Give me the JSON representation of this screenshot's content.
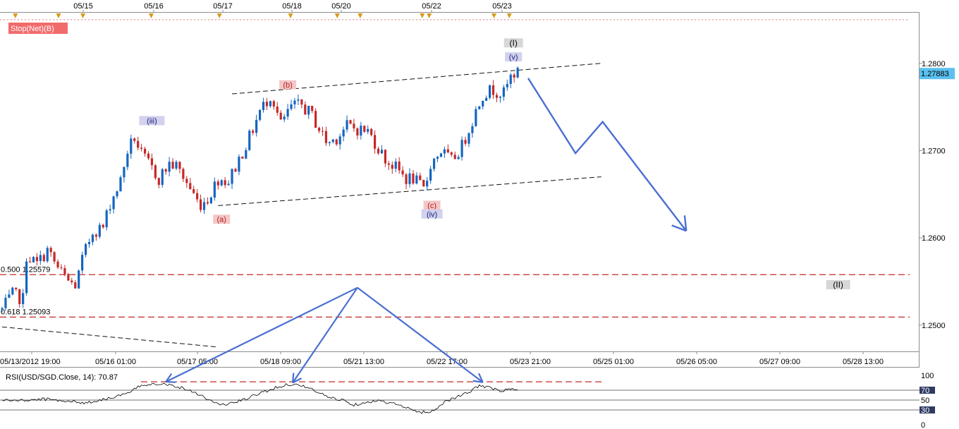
{
  "stop_badge": "Stop(Net)(B)",
  "colors": {
    "up": "#1565c0",
    "down": "#c62828",
    "wave_arrow": "#4a6fd1",
    "fib_line": "#c62828",
    "price_tag": "#5bc0f0",
    "event_marker": "#d99a1c"
  },
  "chart_data": [
    {
      "type": "candlestick",
      "symbol_label": "",
      "top_date_labels": [
        "05/15",
        "05/16",
        "05/17",
        "05/18",
        "05/20",
        "05/22",
        "05/23"
      ],
      "x_axis_labels": [
        "05/13/2012 19:00",
        "05/16 01:00",
        "05/17 05:00",
        "05/18 09:00",
        "05/21 13:00",
        "05/22 17:00",
        "05/23 21:00",
        "05/25 01:00",
        "05/26 05:00",
        "05/27 09:00",
        "05/28 13:00"
      ],
      "y_ticks": [
        1.25,
        1.26,
        1.27,
        1.28
      ],
      "y_tick_labels": [
        "1.2500",
        "1.2600",
        "1.2700",
        "1.2800"
      ],
      "ylim": [
        1.247,
        1.2858
      ],
      "last_price": "1.27883",
      "grid": false,
      "price_path": [
        [
          0,
          1.2518
        ],
        [
          1.5,
          1.2535
        ],
        [
          3,
          1.253
        ],
        [
          3.5,
          1.258
        ],
        [
          5,
          1.257
        ],
        [
          6.5,
          1.2586
        ],
        [
          8,
          1.2565
        ],
        [
          9.5,
          1.255
        ],
        [
          10.6,
          1.2545
        ],
        [
          11.5,
          1.2575
        ],
        [
          13,
          1.2608
        ],
        [
          14.5,
          1.2612
        ],
        [
          15.5,
          1.264
        ],
        [
          17,
          1.2665
        ],
        [
          18,
          1.27
        ],
        [
          19,
          1.2715
        ],
        [
          20,
          1.2695
        ],
        [
          21,
          1.2685
        ],
        [
          22.5,
          1.2668
        ],
        [
          24,
          1.2685
        ],
        [
          25,
          1.2682
        ],
        [
          26,
          1.267
        ],
        [
          27.5,
          1.265
        ],
        [
          28.3,
          1.2638
        ],
        [
          29.5,
          1.2645
        ],
        [
          31,
          1.2668
        ],
        [
          32.5,
          1.2665
        ],
        [
          34,
          1.269
        ],
        [
          35.5,
          1.2715
        ],
        [
          37,
          1.2745
        ],
        [
          38.6,
          1.2765
        ],
        [
          40,
          1.273
        ],
        [
          41.5,
          1.275
        ],
        [
          43,
          1.2752
        ],
        [
          44.5,
          1.274
        ],
        [
          45.5,
          1.2725
        ],
        [
          46.7,
          1.2708
        ],
        [
          48,
          1.2715
        ],
        [
          49.5,
          1.2728
        ],
        [
          51,
          1.2725
        ],
        [
          52.5,
          1.2722
        ],
        [
          53.5,
          1.271
        ],
        [
          55,
          1.269
        ],
        [
          56.5,
          1.268
        ],
        [
          58,
          1.2668
        ],
        [
          59,
          1.2668
        ],
        [
          60.6,
          1.2654
        ],
        [
          61.5,
          1.2685
        ],
        [
          63,
          1.27
        ],
        [
          64.5,
          1.2688
        ],
        [
          66,
          1.2705
        ],
        [
          67.5,
          1.2735
        ],
        [
          69,
          1.2765
        ],
        [
          70.5,
          1.277
        ],
        [
          72,
          1.2765
        ],
        [
          73.3,
          1.279
        ],
        [
          74,
          1.2788
        ]
      ],
      "channel_lines": [
        {
          "from": [
            31,
            1.2637
          ],
          "to": [
            86,
            1.267
          ]
        },
        {
          "from": [
            33,
            1.2765
          ],
          "to": [
            86,
            1.28
          ]
        },
        {
          "from": [
            0,
            1.2498
          ],
          "to": [
            31,
            1.2475
          ]
        }
      ],
      "fib_levels": [
        {
          "label": "0.500 1.25579",
          "value": 1.25579
        },
        {
          "label": "0.618 1.25093",
          "value": 1.25093
        }
      ],
      "top_dashed_level": 1.285,
      "wave_labels": [
        {
          "text": "(iii)",
          "x": 21.5,
          "y": 1.2734
        },
        {
          "text": "(a)",
          "x": 31.5,
          "y": 1.2621
        },
        {
          "text": "(b)",
          "x": 41,
          "y": 1.2775
        },
        {
          "text": "(c)",
          "x": 61.7,
          "y": 1.2637
        },
        {
          "text": "(iv)",
          "x": 61.7,
          "y": 1.2627
        },
        {
          "text": "(v)",
          "x": 73.4,
          "y": 1.2807
        },
        {
          "text": "(I)",
          "x": 73.4,
          "y": 1.2823
        },
        {
          "text": "(II)",
          "x": 120,
          "y": 1.2546
        }
      ],
      "projection": [
        [
          75.5,
          1.2783
        ],
        [
          82.3,
          1.2697
        ],
        [
          86.2,
          1.2733
        ],
        [
          98.2,
          1.2608
        ]
      ],
      "event_markers": [
        1.9,
        8.1,
        11.6,
        21.4,
        31.2,
        41.4,
        48.1,
        51.4,
        60.3,
        61.3,
        70.6,
        72.8
      ]
    },
    {
      "type": "line",
      "title": "RSI(USD/SGD.Close, 14): 70.87",
      "y_ticks": [
        0,
        30,
        50,
        70,
        100
      ],
      "ylim": [
        0,
        100
      ],
      "guide_level": 87,
      "values": [
        [
          0,
          50
        ],
        [
          3,
          49
        ],
        [
          6,
          52
        ],
        [
          8,
          50
        ],
        [
          10,
          47
        ],
        [
          12,
          44
        ],
        [
          14,
          50
        ],
        [
          16,
          56
        ],
        [
          18,
          63
        ],
        [
          20,
          80
        ],
        [
          22,
          84
        ],
        [
          24,
          81
        ],
        [
          26,
          74
        ],
        [
          28,
          64
        ],
        [
          30,
          48
        ],
        [
          31.5,
          40
        ],
        [
          33,
          44
        ],
        [
          35,
          52
        ],
        [
          37,
          64
        ],
        [
          39,
          74
        ],
        [
          41,
          82
        ],
        [
          43,
          80
        ],
        [
          45,
          68
        ],
        [
          47,
          55
        ],
        [
          49,
          50
        ],
        [
          50.5,
          40
        ],
        [
          52,
          46
        ],
        [
          54,
          48
        ],
        [
          56,
          44
        ],
        [
          58,
          34
        ],
        [
          60,
          25
        ],
        [
          62,
          28
        ],
        [
          63.5,
          47
        ],
        [
          65,
          55
        ],
        [
          67,
          65
        ],
        [
          68.5,
          80
        ],
        [
          70,
          75
        ],
        [
          71.5,
          68
        ],
        [
          73,
          72
        ],
        [
          74,
          71
        ]
      ],
      "annotation_arrows": [
        {
          "from": [
            51,
            1.2543
          ],
          "to": [
            23.5,
            87
          ]
        },
        {
          "from": [
            51,
            1.2543
          ],
          "to": [
            41.7,
            85
          ]
        },
        {
          "from": [
            51,
            1.2543
          ],
          "to": [
            69,
            86
          ]
        }
      ]
    }
  ]
}
